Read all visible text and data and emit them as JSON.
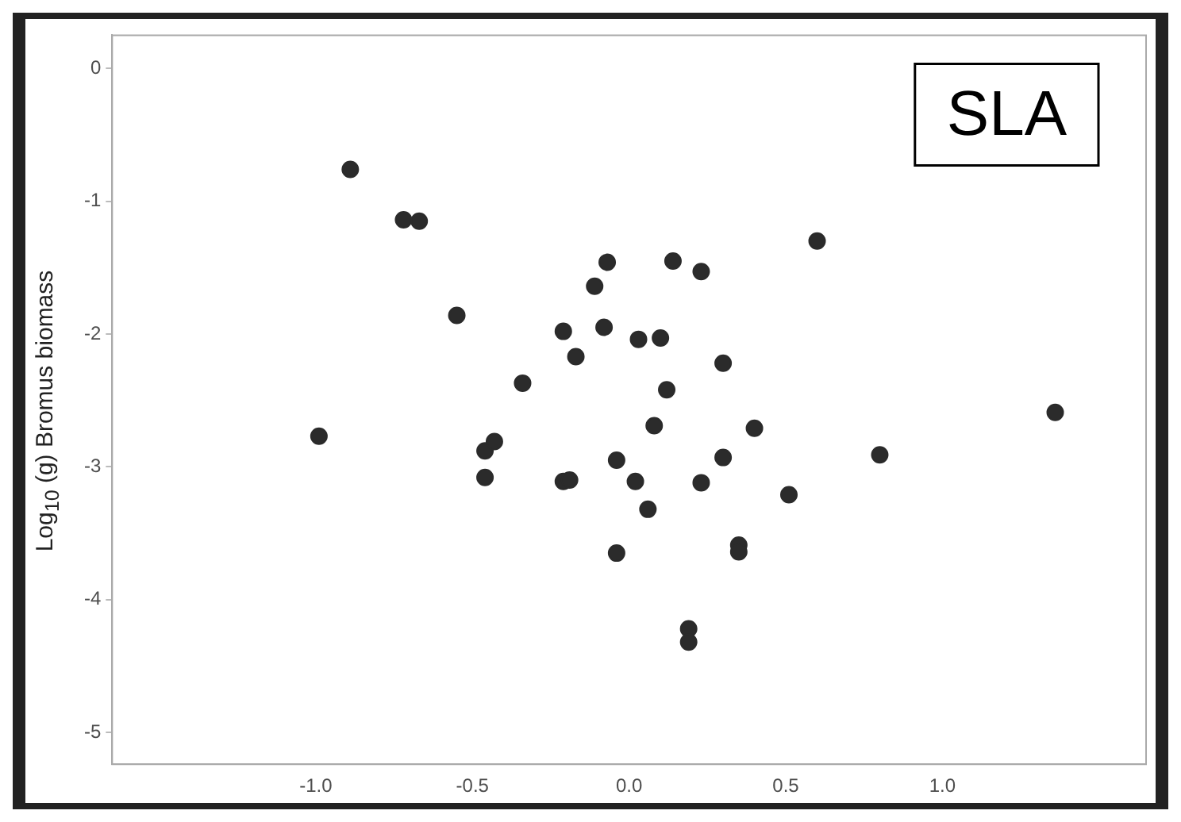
{
  "chart_data": {
    "type": "scatter",
    "ylabel": "Log$_{10}$ (g) Bromus biomass",
    "annotations": [
      "SLA"
    ],
    "marker": "circle",
    "grid": false,
    "series": [
      {
        "color": "#2b2b2b",
        "x": [
          -0.89,
          -0.72,
          -0.67,
          -0.55,
          -0.99,
          -0.34,
          -0.46,
          -0.43,
          -0.46,
          -0.21,
          -0.19,
          -0.21,
          -0.17,
          -0.11,
          -0.07,
          -0.08,
          0.03,
          0.1,
          0.14,
          0.23,
          0.6,
          0.3,
          0.12,
          0.08,
          0.4,
          -0.04,
          0.02,
          0.3,
          0.23,
          0.06,
          0.51,
          -0.04,
          0.35,
          0.35,
          0.19,
          0.19,
          0.8,
          1.36
        ],
        "values": [
          -0.76,
          -1.14,
          -1.15,
          -1.86,
          -2.77,
          -2.37,
          -2.88,
          -2.81,
          -3.08,
          -3.11,
          -3.1,
          -1.98,
          -2.17,
          -1.64,
          -1.46,
          -1.95,
          -2.04,
          -2.03,
          -1.45,
          -1.53,
          -1.3,
          -2.22,
          -2.42,
          -2.69,
          -2.71,
          -2.95,
          -3.11,
          -2.93,
          -3.12,
          -3.32,
          -3.21,
          -3.65,
          -3.59,
          -3.64,
          -4.22,
          -4.32,
          -2.91,
          -2.59
        ]
      }
    ],
    "xlim": [
      -1.65,
      1.65
    ],
    "xticks": [
      {
        "value": -1,
        "label": "-1.0"
      },
      -0.5,
      {
        "value": 0,
        "label": "0.0"
      },
      0.5,
      {
        "value": 1,
        "label": "1.0"
      }
    ],
    "ylim": [
      -5.24,
      0.25
    ],
    "yticks": [
      -5,
      -4,
      -3,
      -2,
      -1,
      0
    ]
  }
}
